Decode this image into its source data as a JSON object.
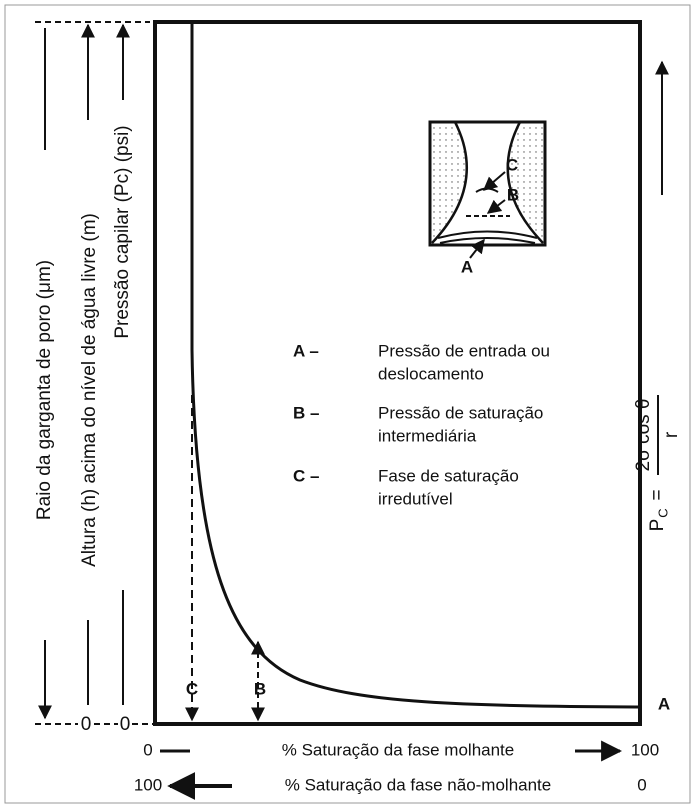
{
  "left_axes": [
    {
      "label": "Raio da garganta de poro (μm)"
    },
    {
      "label": "Altura (h) acima do nível de água livre (m)"
    },
    {
      "label": "Pressão capilar (Pc) (psi)"
    }
  ],
  "left_zeros": [
    "0",
    "0"
  ],
  "inset_labels": {
    "c": "C",
    "b": "B",
    "a": "A"
  },
  "legend": [
    {
      "key": "A –",
      "lines": [
        "Pressão de entrada ou",
        "deslocamento"
      ]
    },
    {
      "key": "B –",
      "lines": [
        "Pressão de saturação",
        "intermediária"
      ]
    },
    {
      "key": "C –",
      "lines": [
        "Fase de saturação",
        "irredutível"
      ]
    }
  ],
  "curve_labels": {
    "c": "C",
    "b": "B",
    "a": "A"
  },
  "formula": {
    "lhs": "P",
    "lhs_sub": "C",
    "equals": "=",
    "numerator": "2σ cos θ",
    "denominator": "r"
  },
  "bottom_axes": [
    {
      "start": "0",
      "label": "% Saturação da fase molhante",
      "end": "100"
    },
    {
      "start": "100",
      "label": "% Saturação da fase não-molhante",
      "end": "0"
    }
  ]
}
